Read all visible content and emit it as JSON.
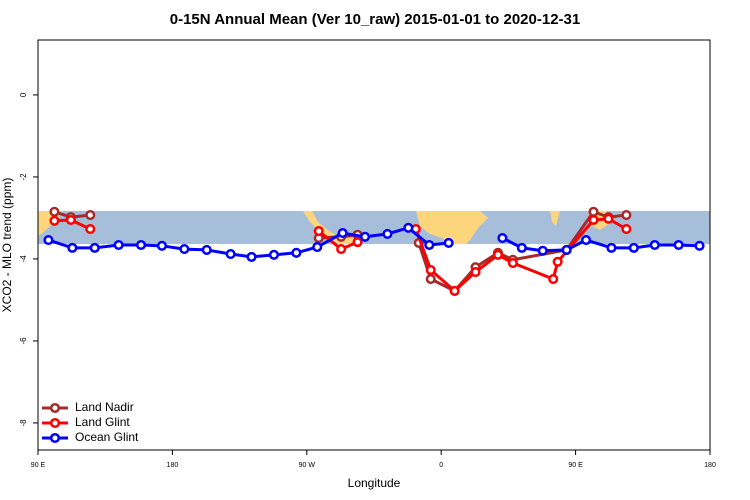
{
  "chart_data": {
    "type": "line",
    "title": "0-15N Annual Mean (Ver 10_raw)   2015-01-01 to 2020-12-31",
    "x_label": "Longitude",
    "y_label": "XCO2 - MLO trend (ppm)",
    "xlim": [
      90,
      540
    ],
    "xticks": [
      {
        "value": 90,
        "label": "90 E"
      },
      180,
      {
        "value": 270,
        "label": "90 W"
      },
      {
        "value": 360,
        "label": "0"
      },
      {
        "value": 450,
        "label": "90 E"
      },
      {
        "value": 540,
        "label": "180"
      }
    ],
    "ylim": [
      -8.66,
      1.34
    ],
    "yticks": [
      0,
      -2,
      -4,
      -6,
      -8
    ],
    "legend": "bottom-left",
    "series": [
      {
        "name": "Land Nadir",
        "color": "#a52a2a",
        "x": [
          101,
          112,
          125,
          null,
          278,
          293,
          304,
          null,
          345,
          353,
          369,
          383,
          398,
          408,
          444,
          462,
          472,
          484
        ],
        "values": [
          -2.85,
          -2.98,
          -2.93,
          null,
          -3.49,
          -3.46,
          -3.41,
          null,
          -3.61,
          -4.49,
          -4.78,
          -4.2,
          -3.85,
          -4.02,
          -3.78,
          -2.85,
          -2.98,
          -2.93
        ]
      },
      {
        "name": "Land Glint",
        "color": "#ff0000",
        "x": [
          101,
          112,
          125,
          null,
          278,
          293,
          304,
          null,
          343,
          353,
          369,
          383,
          398,
          408,
          435,
          438,
          462,
          472,
          484
        ],
        "values": [
          -3.07,
          -3.05,
          -3.27,
          null,
          -3.32,
          -3.76,
          -3.59,
          null,
          -3.27,
          -4.27,
          -4.78,
          -4.32,
          -3.9,
          -4.1,
          -4.49,
          -4.07,
          -3.05,
          -3.02,
          -3.27
        ]
      },
      {
        "name": "Ocean Glint",
        "color": "#0000ff",
        "x": [
          97,
          113,
          128,
          144,
          159,
          173,
          188,
          203,
          219,
          233,
          248,
          263,
          277,
          294,
          309,
          324,
          338,
          352,
          365,
          null,
          401,
          414,
          428,
          444,
          457,
          474,
          489,
          503,
          519,
          533
        ],
        "values": [
          -3.54,
          -3.73,
          -3.73,
          -3.66,
          -3.66,
          -3.68,
          -3.76,
          -3.78,
          -3.88,
          -3.95,
          -3.9,
          -3.85,
          -3.71,
          -3.37,
          -3.46,
          -3.39,
          -3.24,
          -3.66,
          -3.61,
          null,
          -3.49,
          -3.73,
          -3.8,
          -3.78,
          -3.54,
          -3.73,
          -3.73,
          -3.66,
          -3.66,
          -3.68
        ]
      }
    ]
  }
}
